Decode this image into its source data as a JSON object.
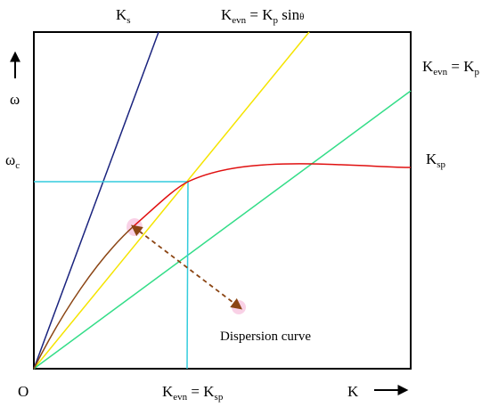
{
  "labels": {
    "ks": {
      "main": "K",
      "sub": "s"
    },
    "kevn_kp_sin": {
      "k1": "K",
      "s1": "evn",
      "eq": " = K",
      "s2": "p",
      "tail": " sin",
      "theta": "θ"
    },
    "kevn_kp": {
      "k1": "K",
      "s1": "evn",
      "eq": " = K",
      "s2": "p"
    },
    "ksp": {
      "main": "K",
      "sub": "sp"
    },
    "omega": "ω",
    "omega_c": {
      "main": "ω",
      "sub": "c"
    },
    "origin": "O",
    "kevn_ksp": {
      "k1": "K",
      "s1": "evn",
      "eq": " = K",
      "s2": "sp"
    },
    "k_axis": "K",
    "dispersion": "Dispersion curve"
  },
  "colors": {
    "frame": "#000000",
    "ks_line": "#1a237e",
    "kp_sin_line": "#f5e400",
    "kp_line": "#33dd88",
    "ksp_curve_upper": "#e01010",
    "ksp_curve_lower": "#8b4513",
    "crossing_guides": "#33ccdd",
    "dispersion_arrow": "#8b4513",
    "highlight": "#f7c6e0"
  }
}
